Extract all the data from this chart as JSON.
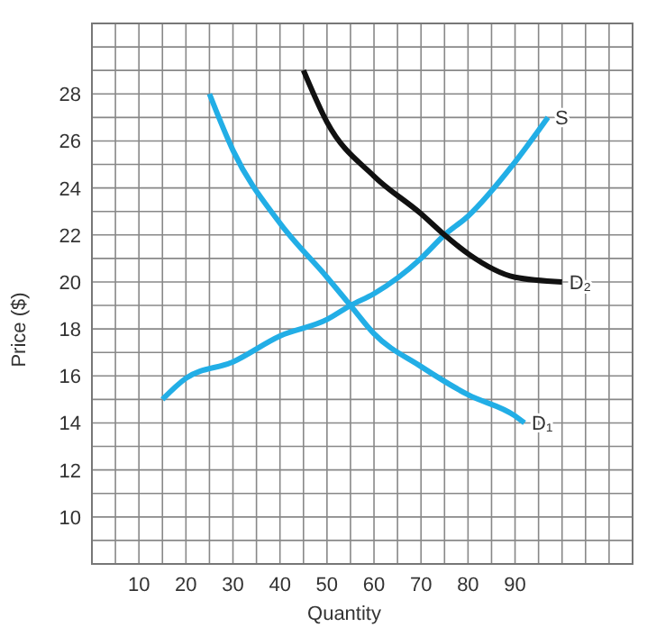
{
  "chart_data": {
    "type": "line",
    "xlabel": "Quantity",
    "ylabel": "Price ($)",
    "xlim": [
      0,
      115
    ],
    "ylim": [
      8,
      31
    ],
    "xticks": [
      {
        "value": 0,
        "label": null
      },
      {
        "value": 5,
        "label": null
      },
      10,
      {
        "value": 15,
        "label": null
      },
      20,
      {
        "value": 25,
        "label": null
      },
      30,
      {
        "value": 35,
        "label": null
      },
      40,
      {
        "value": 45,
        "label": null
      },
      50,
      {
        "value": 55,
        "label": null
      },
      60,
      {
        "value": 65,
        "label": null
      },
      70,
      {
        "value": 75,
        "label": null
      },
      80,
      {
        "value": 85,
        "label": null
      },
      90,
      {
        "value": 95,
        "label": null
      },
      {
        "value": 100,
        "label": null
      },
      {
        "value": 105,
        "label": null
      },
      {
        "value": 110,
        "label": null
      },
      {
        "value": 115,
        "label": null
      }
    ],
    "yticks": [
      {
        "value": 8,
        "label": null
      },
      {
        "value": 9,
        "label": null
      },
      10,
      {
        "value": 11,
        "label": null
      },
      12,
      {
        "value": 13,
        "label": null
      },
      14,
      {
        "value": 15,
        "label": null
      },
      16,
      {
        "value": 17,
        "label": null
      },
      18,
      {
        "value": 19,
        "label": null
      },
      20,
      {
        "value": 21,
        "label": null
      },
      22,
      {
        "value": 23,
        "label": null
      },
      24,
      {
        "value": 25,
        "label": null
      },
      26,
      {
        "value": 27,
        "label": null
      },
      28,
      {
        "value": 29,
        "label": null
      },
      {
        "value": 30,
        "label": null
      },
      {
        "value": 31,
        "label": null
      }
    ],
    "grid": true,
    "marker": "none",
    "line_style": "solid",
    "series": [
      {
        "name": "S",
        "color": "#22aee6",
        "x": [
          15,
          20,
          30,
          40,
          50,
          55,
          60,
          70,
          75,
          80,
          90,
          97
        ],
        "values": [
          15,
          15.9,
          16.6,
          17.7,
          18.4,
          19,
          19.5,
          21,
          22,
          22.8,
          25.1,
          27
        ]
      },
      {
        "name": "D₁",
        "color": "#22aee6",
        "x": [
          25,
          30,
          40,
          50,
          55,
          60,
          70,
          80,
          90,
          92
        ],
        "values": [
          28,
          25.6,
          22.5,
          20.2,
          19,
          17.8,
          16.4,
          15.2,
          14.3,
          14
        ]
      },
      {
        "name": "D₂",
        "color": "#111111",
        "x": [
          45,
          50,
          60,
          70,
          75,
          80,
          90,
          100
        ],
        "values": [
          29,
          26.8,
          24.5,
          22.9,
          22,
          21.2,
          20.2,
          20
        ]
      }
    ]
  }
}
